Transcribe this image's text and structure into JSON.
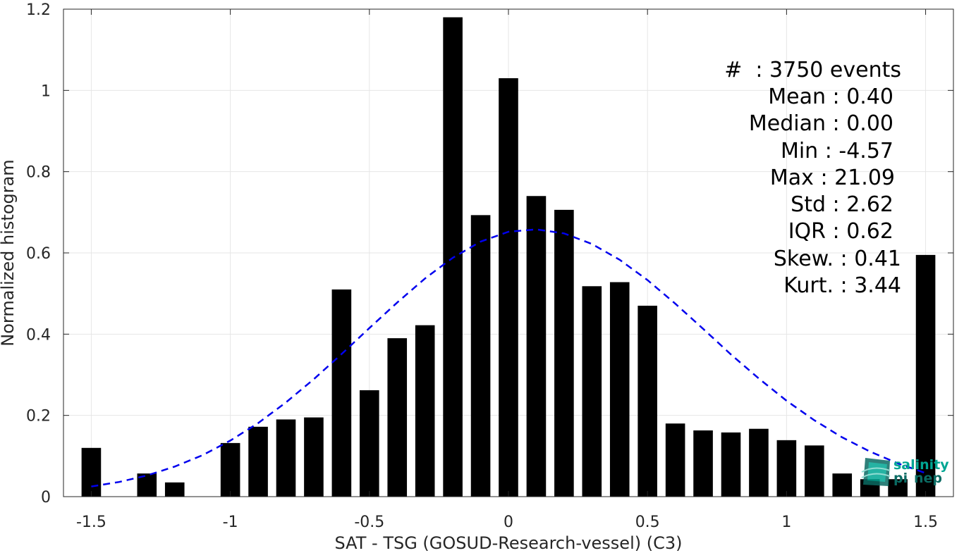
{
  "chart_data": {
    "type": "bar",
    "title": "",
    "xlabel": "SAT - TSG (GOSUD-Research-vessel) (C3)",
    "ylabel": "Normalized histogram",
    "xlim": [
      -1.6,
      1.6
    ],
    "ylim": [
      0,
      1.2
    ],
    "x_ticks": [
      -1.5,
      -1,
      -0.5,
      0,
      0.5,
      1,
      1.5
    ],
    "x_tick_labels": [
      "-1.5",
      "-1",
      "-0.5",
      "0",
      "0.5",
      "1",
      "1.5"
    ],
    "y_ticks": [
      0,
      0.2,
      0.4,
      0.6,
      0.8,
      1,
      1.2
    ],
    "y_tick_labels": [
      "0",
      "0.2",
      "0.4",
      "0.6",
      "0.8",
      "1",
      "1.2"
    ],
    "grid": true,
    "bar_color": "#000000",
    "bar_width": 0.07,
    "bars": {
      "x": [
        -1.5,
        -1.4,
        -1.3,
        -1.2,
        -1.1,
        -1.0,
        -0.9,
        -0.8,
        -0.7,
        -0.6,
        -0.5,
        -0.4,
        -0.3,
        -0.2,
        -0.1,
        0.0,
        0.1,
        0.2,
        0.3,
        0.4,
        0.5,
        0.6,
        0.7,
        0.8,
        0.9,
        1.0,
        1.1,
        1.2,
        1.3,
        1.4,
        1.5
      ],
      "y": [
        0.12,
        0.0,
        0.057,
        0.035,
        0.0,
        0.132,
        0.172,
        0.19,
        0.195,
        0.51,
        0.262,
        0.39,
        0.422,
        1.18,
        0.693,
        1.03,
        0.74,
        0.706,
        0.518,
        0.528,
        0.47,
        0.18,
        0.163,
        0.158,
        0.167,
        0.139,
        0.126,
        0.057,
        0.043,
        0.043,
        0.595
      ]
    },
    "fit_curve": {
      "style": "dashed",
      "color": "#0000ee",
      "x": [
        -1.5,
        -1.4,
        -1.3,
        -1.2,
        -1.1,
        -1.0,
        -0.9,
        -0.8,
        -0.7,
        -0.6,
        -0.5,
        -0.4,
        -0.3,
        -0.2,
        -0.1,
        0.0,
        0.1,
        0.2,
        0.3,
        0.4,
        0.5,
        0.6,
        0.7,
        0.8,
        0.9,
        1.0,
        1.1,
        1.2,
        1.3,
        1.4,
        1.5
      ],
      "y": [
        0.025,
        0.036,
        0.052,
        0.074,
        0.102,
        0.138,
        0.181,
        0.232,
        0.289,
        0.351,
        0.415,
        0.478,
        0.537,
        0.588,
        0.628,
        0.652,
        0.658,
        0.648,
        0.622,
        0.583,
        0.533,
        0.475,
        0.413,
        0.35,
        0.291,
        0.236,
        0.188,
        0.146,
        0.111,
        0.082,
        0.058
      ]
    },
    "annotations": [
      "#  : 3750 events",
      "Mean : 0.40",
      "Median : 0.00",
      "Min : -4.57",
      "Max : 21.09",
      "Std : 2.62",
      "IQR : 0.62",
      "Skew. : 0.41",
      "Kurt. : 3.44"
    ]
  },
  "logo": {
    "line1": "salinity",
    "line2": "pi",
    "line3": "nep",
    "primary_color": "#00a693",
    "secondary_color": "#0b6b63"
  }
}
